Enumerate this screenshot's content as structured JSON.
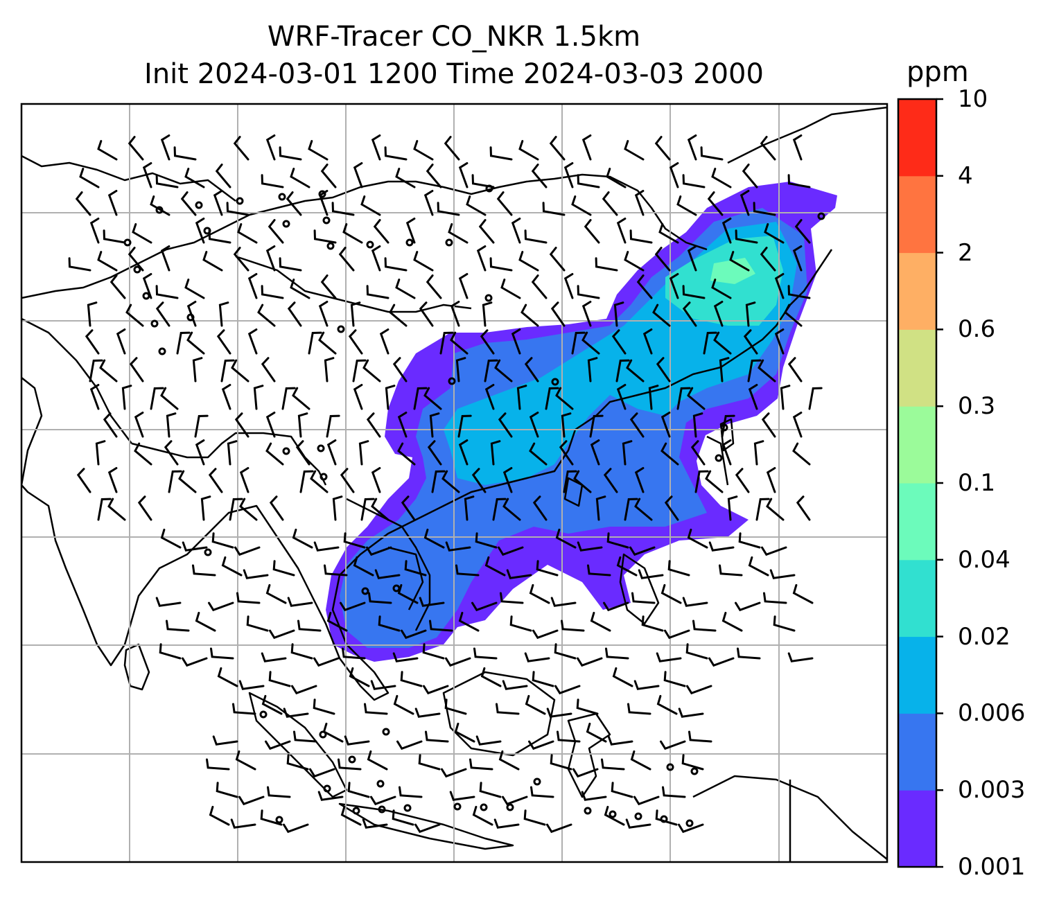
{
  "title_line1": "WRF-Tracer CO_NKR 1.5km",
  "title_line2": "Init 2024-03-01 1200 Time 2024-03-03 2000",
  "colorbar": {
    "units": "ppm",
    "levels": [
      "0.001",
      "0.003",
      "0.006",
      "0.02",
      "0.04",
      "0.1",
      "0.3",
      "0.6",
      "2",
      "4",
      "10"
    ],
    "colors": [
      "#6a2bff",
      "#3776f0",
      "#07b2ea",
      "#31e0d0",
      "#6cfbbb",
      "#9bfb9a",
      "#d0e184",
      "#feaf64",
      "#ff7440",
      "#fe2b18"
    ]
  },
  "map": {
    "gridlines": true,
    "features": [
      "coastlines",
      "country-borders",
      "wind-barbs",
      "co-tracer-plume"
    ]
  }
}
